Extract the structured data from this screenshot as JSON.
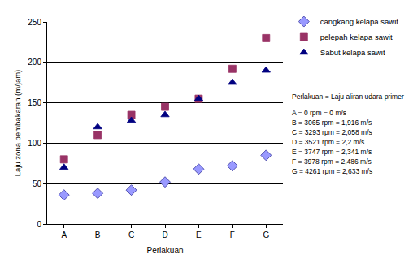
{
  "chart_data": {
    "type": "scatter",
    "x_label": "Perlakuan",
    "y_label": "Laju zona pembakaran (m/jam)",
    "categories": [
      "A",
      "B",
      "C",
      "D",
      "E",
      "F",
      "G"
    ],
    "series": [
      {
        "name": "cangkang kelapa sawit",
        "color": "#9999ff",
        "marker": "diamond",
        "values": [
          36,
          38,
          42,
          52,
          68,
          72,
          85
        ]
      },
      {
        "name": "pelepah kelapa sawit",
        "color": "#993366",
        "marker": "square",
        "values": [
          80,
          110,
          135,
          145,
          155,
          192,
          230
        ]
      },
      {
        "name": "Sabut kelapa sawit",
        "color": "#000080",
        "marker": "triangle-up",
        "values": [
          70,
          120,
          128,
          135,
          155,
          175,
          190
        ]
      }
    ],
    "ylim": [
      0,
      250
    ],
    "yticks": [
      0,
      50,
      100,
      150,
      200,
      250
    ],
    "grid": true,
    "legend": "top right",
    "annotations": [
      "Perlakuan = Laju aliran udara primer",
      "A = 0 rpm = 0 m/s",
      "B = 3065 rpm = 1,916 m/s",
      "C = 3293 rpm = 2,058 m/s",
      "D = 3521 rpm = 2,2 m/s",
      "E = 3747 rpm = 2,341 m/s",
      "F = 3978 rpm = 2,486 m/s",
      "G = 4261 rpm = 2,633 m/s"
    ]
  }
}
